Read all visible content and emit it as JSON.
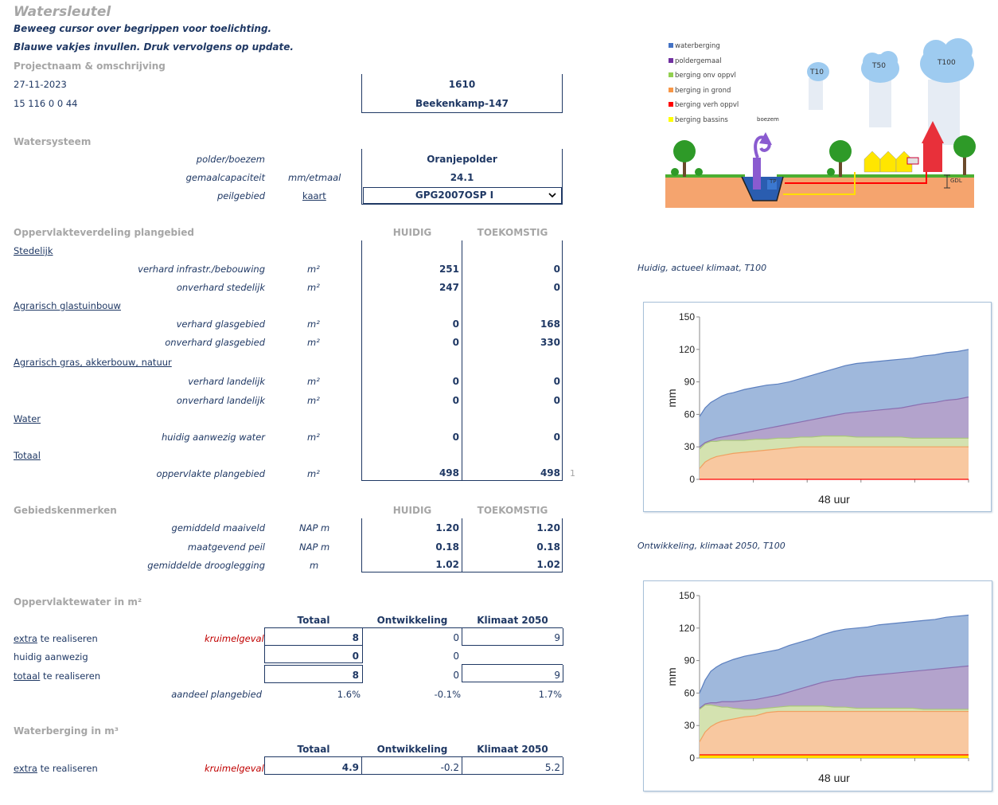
{
  "header": {
    "title": "Watersleutel",
    "instruction1": "Beweeg cursor over begrippen voor toelichting.",
    "instruction2": "Blauwe vakjes invullen. Druk vervolgens op update."
  },
  "project": {
    "section": "Projectnaam & omschrijving",
    "date": "27-11-2023",
    "code": "15 116 0 0 44",
    "number": "1610",
    "name": "Beekenkamp-147"
  },
  "watersysteem": {
    "section": "Watersysteem",
    "polder_label": "polder/boezem",
    "polder_value": "Oranjepolder",
    "capacity_label": "gemaalcapaciteit",
    "capacity_unit": "mm/etmaal",
    "capacity_value": "24.1",
    "peil_label": "peilgebied",
    "peil_link": "kaart",
    "peil_value": "GPG2007OSP I"
  },
  "oppervlakte": {
    "section": "Oppervlakteverdeling plangebied",
    "col_huidig": "HUIDIG",
    "col_toekomstig": "TOEKOMSTIG",
    "stedelijk": "Stedelijk",
    "row1_label": "verhard infrastr./bebouwing",
    "row1_unit": "m²",
    "row1_h": "251",
    "row1_t": "0",
    "row2_label": "onverhard stedelijk",
    "row2_unit": "m²",
    "row2_h": "247",
    "row2_t": "0",
    "glas": "Agrarisch glastuinbouw",
    "row3_label": "verhard glasgebied",
    "row3_unit": "m²",
    "row3_h": "0",
    "row3_t": "168",
    "row4_label": "onverhard glasgebied",
    "row4_unit": "m²",
    "row4_h": "0",
    "row4_t": "330",
    "agrarisch": "Agrarisch gras, akkerbouw, natuur",
    "row5_label": "verhard landelijk",
    "row5_unit": "m²",
    "row5_h": "0",
    "row5_t": "0",
    "row6_label": "onverhard landelijk",
    "row6_unit": "m²",
    "row6_h": "0",
    "row6_t": "0",
    "water": "Water",
    "row7_label": "huidig aanwezig water",
    "row7_unit": "m²",
    "row7_h": "0",
    "row7_t": "0",
    "totaal": "Totaal",
    "row8_label": "oppervlakte plangebied",
    "row8_unit": "m²",
    "row8_h": "498",
    "row8_t": "498",
    "row8_flag": "1"
  },
  "kenmerken": {
    "section": "Gebiedskenmerken",
    "col_huidig": "HUIDIG",
    "col_toekomstig": "TOEKOMSTIG",
    "row1_label": "gemiddeld maaiveld",
    "row1_unit": "NAP m",
    "row1_h": "1.20",
    "row1_t": "1.20",
    "row2_label": "maatgevend peil",
    "row2_unit": "NAP m",
    "row2_h": "0.18",
    "row2_t": "0.18",
    "row3_label": "gemiddelde drooglegging",
    "row3_unit": "m",
    "row3_h": "1.02",
    "row3_t": "1.02"
  },
  "opp_water": {
    "section": "Oppervlaktewater in m²",
    "col1": "Totaal",
    "col2": "Ontwikkeling",
    "col3": "Klimaat 2050",
    "r1_link": "extra",
    "r1_rest": " te realiseren",
    "r1_note": "kruimelgeval",
    "r1_v1": "8",
    "r1_v2": "0",
    "r1_v3": "9",
    "r2_label": "huidig aanwezig",
    "r2_v1": "0",
    "r2_v2": "0",
    "r3_link": "totaal",
    "r3_rest": " te realiseren",
    "r3_v1": "8",
    "r3_v2": "0",
    "r3_v3": "9",
    "r4_label": "aandeel plangebied",
    "r4_v1": "1.6%",
    "r4_v2": "-0.1%",
    "r4_v3": "1.7%"
  },
  "waterberging": {
    "section": "Waterberging in m³",
    "col1": "Totaal",
    "col2": "Ontwikkeling",
    "col3": "Klimaat 2050",
    "r1_link": "extra",
    "r1_rest": " te realiseren",
    "r1_note": "kruimelgeval",
    "r1_v1": "4.9",
    "r1_v2": "-0.2",
    "r1_v3": "5.2"
  },
  "illustration": {
    "legend": [
      "waterberging",
      "poldergemaal",
      "berging onv oppvl",
      "berging in grond",
      "berging verh oppvl",
      "berging bassins"
    ],
    "legend_colors": [
      "#4472c4",
      "#7030a0",
      "#92d050",
      "#f79646",
      "#ff0000",
      "#ffff00"
    ],
    "clouds": [
      "T10",
      "T50",
      "T100"
    ],
    "boezem": "boezem",
    "tp": "TP",
    "gdl": "GDL"
  },
  "chart_data": [
    {
      "type": "area",
      "caption": "Huidig, actueel klimaat, T100",
      "xlabel": "48 uur",
      "ylabel": "mm",
      "ylim": [
        0,
        150
      ],
      "yticks": [
        0,
        30,
        60,
        90,
        120,
        150
      ],
      "x": [
        0,
        1,
        2,
        3,
        4,
        5,
        6,
        8,
        10,
        12,
        14,
        16,
        18,
        20,
        22,
        24,
        26,
        28,
        30,
        32,
        34,
        36,
        38,
        40,
        42,
        44,
        46,
        48
      ],
      "series": [
        {
          "name": "berging verh oppvl",
          "color": "#ff0000",
          "cumulative": [
            0,
            0,
            0,
            0,
            0,
            0,
            0,
            0,
            0,
            0,
            0,
            0,
            0,
            0,
            0,
            0,
            0,
            0,
            0,
            0,
            0,
            0,
            0,
            0,
            0,
            0,
            0,
            0
          ]
        },
        {
          "name": "berging in grond",
          "color": "#f8c8a0",
          "cumulative": [
            10,
            16,
            19,
            21,
            22,
            23,
            24,
            25,
            26,
            27,
            28,
            29,
            30,
            30,
            30,
            30,
            30,
            30,
            30,
            30,
            30,
            30,
            30,
            30,
            30,
            30,
            30,
            30
          ]
        },
        {
          "name": "berging onv oppvl",
          "color": "#d4e2b0",
          "cumulative": [
            28,
            33,
            35,
            35,
            36,
            36,
            36,
            36,
            37,
            37,
            38,
            38,
            39,
            39,
            40,
            40,
            40,
            39,
            39,
            39,
            39,
            39,
            38,
            38,
            38,
            38,
            38,
            38
          ]
        },
        {
          "name": "poldergemaal",
          "color": "#b3a3cc",
          "cumulative": [
            30,
            34,
            36,
            38,
            39,
            40,
            41,
            43,
            45,
            47,
            49,
            51,
            53,
            55,
            57,
            59,
            61,
            62,
            63,
            64,
            65,
            66,
            68,
            70,
            71,
            73,
            74,
            76
          ]
        },
        {
          "name": "waterberging",
          "color": "#9fb8dc",
          "cumulative": [
            58,
            66,
            71,
            74,
            77,
            79,
            80,
            83,
            85,
            87,
            88,
            90,
            93,
            96,
            99,
            102,
            105,
            107,
            108,
            109,
            110,
            111,
            112,
            114,
            115,
            117,
            118,
            120
          ]
        }
      ]
    },
    {
      "type": "area",
      "caption": "Ontwikkeling, klimaat 2050, T100",
      "xlabel": "48 uur",
      "ylabel": "mm",
      "ylim": [
        0,
        150
      ],
      "yticks": [
        0,
        30,
        60,
        90,
        120,
        150
      ],
      "x": [
        0,
        1,
        2,
        3,
        4,
        5,
        6,
        8,
        10,
        12,
        14,
        16,
        18,
        20,
        22,
        24,
        26,
        28,
        30,
        32,
        34,
        36,
        38,
        40,
        42,
        44,
        46,
        48
      ],
      "series": [
        {
          "name": "berging bassins",
          "color": "#ffdf00",
          "cumulative": [
            2,
            2,
            2,
            2,
            2,
            2,
            2,
            2,
            2,
            2,
            2,
            2,
            2,
            2,
            2,
            2,
            2,
            2,
            2,
            2,
            2,
            2,
            2,
            2,
            2,
            2,
            2,
            2
          ]
        },
        {
          "name": "berging verh oppvl",
          "color": "#ff0000",
          "cumulative": [
            3,
            3,
            3,
            3,
            3,
            3,
            3,
            3,
            3,
            3,
            3,
            3,
            3,
            3,
            3,
            3,
            3,
            3,
            3,
            3,
            3,
            3,
            3,
            3,
            3,
            3,
            3,
            3
          ]
        },
        {
          "name": "berging in grond",
          "color": "#f8c8a0",
          "cumulative": [
            15,
            24,
            29,
            32,
            34,
            35,
            36,
            38,
            39,
            42,
            43,
            43,
            43,
            43,
            43,
            43,
            43,
            43,
            43,
            43,
            43,
            43,
            43,
            43,
            43,
            43,
            43,
            43
          ]
        },
        {
          "name": "berging onv oppvl",
          "color": "#d4e2b0",
          "cumulative": [
            45,
            49,
            49,
            48,
            47,
            47,
            46,
            45,
            45,
            46,
            47,
            48,
            48,
            48,
            48,
            47,
            47,
            46,
            46,
            46,
            46,
            46,
            46,
            45,
            45,
            45,
            45,
            45
          ]
        },
        {
          "name": "poldergemaal",
          "color": "#b3a3cc",
          "cumulative": [
            46,
            50,
            51,
            51,
            52,
            52,
            52,
            53,
            54,
            56,
            58,
            61,
            64,
            67,
            70,
            72,
            73,
            75,
            76,
            77,
            78,
            79,
            80,
            81,
            82,
            83,
            84,
            85
          ]
        },
        {
          "name": "waterberging",
          "color": "#9fb8dc",
          "cumulative": [
            60,
            72,
            80,
            84,
            87,
            89,
            91,
            94,
            96,
            98,
            100,
            104,
            107,
            110,
            114,
            117,
            119,
            120,
            121,
            123,
            124,
            125,
            126,
            127,
            128,
            130,
            131,
            132
          ]
        }
      ]
    }
  ]
}
